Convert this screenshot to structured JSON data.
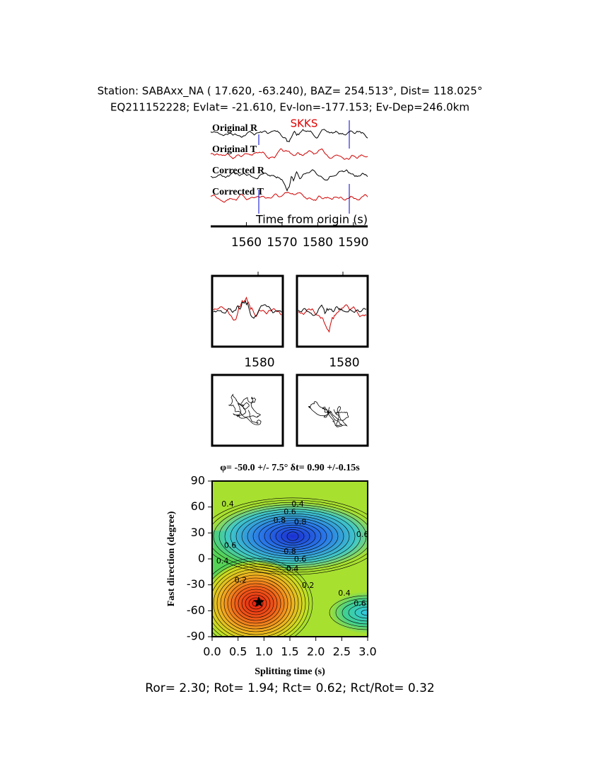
{
  "header": {
    "station": "Station: SABAxx_NA (  17.620,  -63.240), BAZ=  254.513°, Dist=  118.025°",
    "event": "EQ211152228; Evlat= -21.610, Ev-lon=-177.153; Ev-Dep=246.0km"
  },
  "traces": {
    "labels": [
      "Original R",
      "Original T",
      "Corrected R",
      "Corrected T"
    ],
    "phase": "SKKS",
    "xlabel": "Time from origin (s)",
    "xlim": [
      1550,
      1594
    ],
    "xticks": [
      1560,
      1570,
      1580,
      1590
    ]
  },
  "windows": {
    "xticks": [
      1580,
      1580
    ]
  },
  "grid_search": {
    "title": "φ= -50.0 +/- 7.5° δt= 0.90 +/-0.15s",
    "xlabel": "Splitting time (s)",
    "ylabel": "Fast direction (degree)",
    "xlim": [
      0,
      3
    ],
    "ylim": [
      -90,
      90
    ],
    "xticks": [
      {
        "value": 0,
        "label": "0.0"
      },
      0.5,
      {
        "value": 1,
        "label": "1.0"
      },
      1.5,
      {
        "value": 2,
        "label": "2.0"
      },
      2.5,
      {
        "value": 3,
        "label": "3.0"
      }
    ],
    "yticks": [
      -90,
      -60,
      -30,
      0,
      30,
      60,
      90
    ],
    "best": {
      "dt": 0.9,
      "phi": -50
    },
    "contour_labels": [
      {
        "dt": 0.3,
        "phi": 63,
        "level": 0.4
      },
      {
        "dt": 1.65,
        "phi": 63,
        "level": 0.4
      },
      {
        "dt": 1.5,
        "phi": 54,
        "level": 0.6
      },
      {
        "dt": 1.3,
        "phi": 44,
        "level": 0.8
      },
      {
        "dt": 1.7,
        "phi": 42,
        "level": 0.8
      },
      {
        "dt": 1.5,
        "phi": 8,
        "level": 0.8
      },
      {
        "dt": 1.7,
        "phi": -1,
        "level": 0.6
      },
      {
        "dt": 1.55,
        "phi": -12,
        "level": 0.4
      },
      {
        "dt": 0.35,
        "phi": 15,
        "level": 0.6
      },
      {
        "dt": 0.2,
        "phi": -3,
        "level": 0.4
      },
      {
        "dt": 2.9,
        "phi": 28,
        "level": 0.6
      },
      {
        "dt": 0.55,
        "phi": -25,
        "level": 0.2
      },
      {
        "dt": 1.85,
        "phi": -31,
        "level": 0.2
      },
      {
        "dt": 2.55,
        "phi": -40,
        "level": 0.4
      },
      {
        "dt": 2.85,
        "phi": -52,
        "level": 0.6
      }
    ]
  },
  "result": "Ror= 2.30; Rot= 1.94; Rct= 0.62; Rct/Rot= 0.32"
}
